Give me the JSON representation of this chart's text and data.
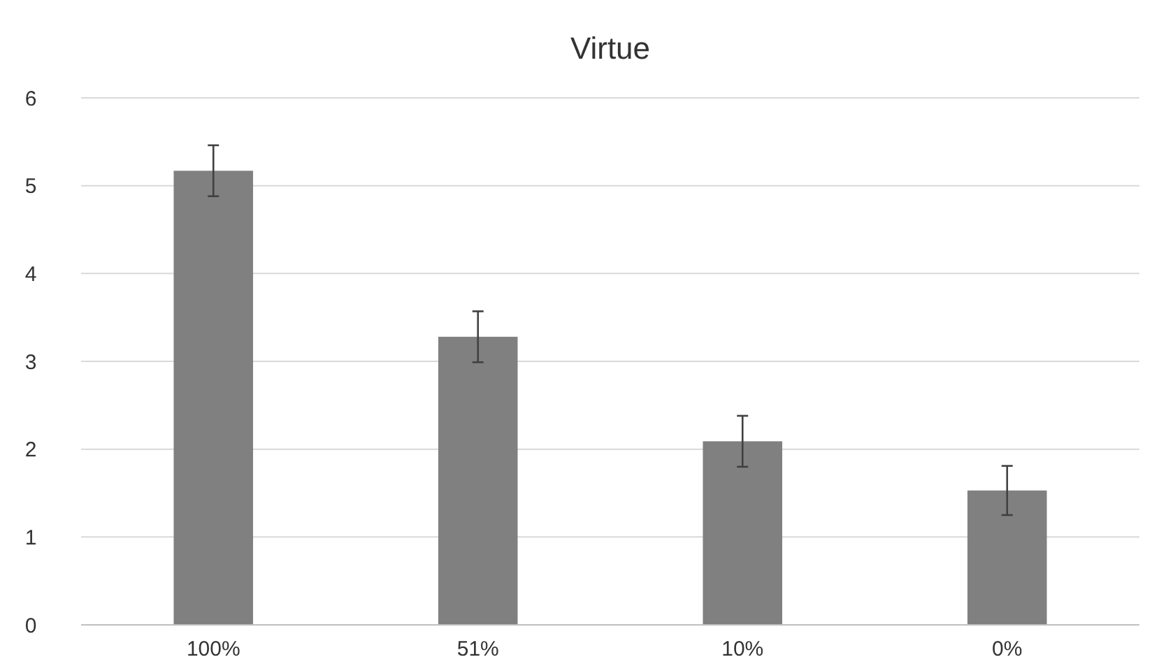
{
  "chart_data": {
    "type": "bar",
    "title": "Virtue",
    "categories": [
      "100%",
      "51%",
      "10%",
      "0%"
    ],
    "values": [
      5.17,
      3.28,
      2.09,
      1.53
    ],
    "errors": [
      0.29,
      0.29,
      0.29,
      0.28
    ],
    "color": "#808080",
    "ylim": [
      0,
      6
    ],
    "yticks": [
      0,
      1,
      2,
      3,
      4,
      5,
      6
    ],
    "grid": "y"
  }
}
